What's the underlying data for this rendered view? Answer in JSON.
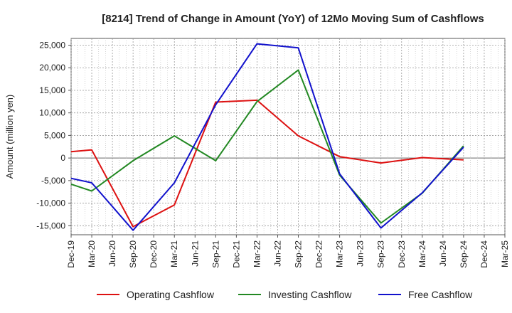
{
  "chart_data": {
    "type": "line",
    "title": "[8214]  Trend of Change in Amount (YoY) of 12Mo Moving Sum of Cashflows",
    "ylabel": "Amount (million yen)",
    "xlabel": "",
    "ylim": [
      -17000,
      26500
    ],
    "yticks": [
      25000,
      20000,
      15000,
      10000,
      5000,
      0,
      -5000,
      -10000,
      -15000
    ],
    "ytick_labels": [
      "25,000",
      "20,000",
      "15,000",
      "10,000",
      "5,000",
      "0",
      "-5,000",
      "-10,000",
      "-15,000"
    ],
    "categories": [
      "Dec-19",
      "Mar-20",
      "Jun-20",
      "Sep-20",
      "Dec-20",
      "Mar-21",
      "Jun-21",
      "Sep-21",
      "Dec-21",
      "Mar-22",
      "Jun-22",
      "Sep-22",
      "Dec-22",
      "Mar-23",
      "Jun-23",
      "Sep-23",
      "Dec-23",
      "Mar-24",
      "Jun-24",
      "Sep-24",
      "Dec-24",
      "Mar-25"
    ],
    "grid": true,
    "legend_position": "bottom",
    "series": [
      {
        "name": "Operating Cashflow",
        "color": "#dd1111",
        "values": [
          1400,
          1800,
          null,
          -15200,
          null,
          -10400,
          null,
          12400,
          null,
          12800,
          null,
          4900,
          null,
          300,
          null,
          -1100,
          null,
          100,
          null,
          -400,
          null,
          null
        ]
      },
      {
        "name": "Investing Cashflow",
        "color": "#228822",
        "values": [
          -5800,
          -7300,
          null,
          -600,
          null,
          4900,
          null,
          -600,
          null,
          12500,
          null,
          19500,
          null,
          -3800,
          null,
          -14400,
          null,
          -7800,
          null,
          2700,
          null,
          null
        ]
      },
      {
        "name": "Free Cashflow",
        "color": "#1111cc",
        "values": [
          -4500,
          -5500,
          null,
          -16000,
          null,
          -5500,
          null,
          11800,
          null,
          25300,
          null,
          24400,
          null,
          -3500,
          null,
          -15500,
          null,
          -7700,
          null,
          2400,
          null,
          null
        ]
      }
    ]
  }
}
